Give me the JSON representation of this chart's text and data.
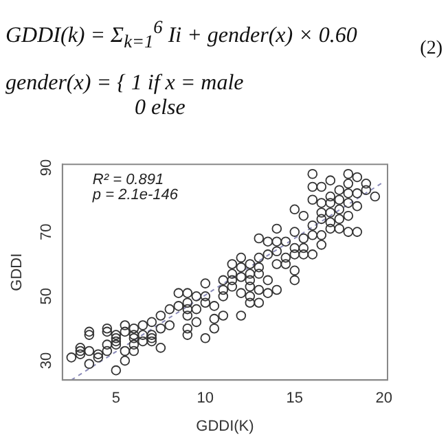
{
  "chart_data": {
    "type": "scatter",
    "xlabel": "GDDI(K)",
    "ylabel": "GDDI",
    "annotations": [
      "GDDI(k) = Σ$_{k=1}$$^{6}$ Ii + gender(x) × 0.60",
      "(2)",
      "gender(x) = { 1    if  x = male",
      "0    else",
      "R² = 0.891",
      "p = 2.1e-146"
    ],
    "xlim": [
      2,
      20.2
    ],
    "ylim": [
      24,
      91
    ],
    "xticks": [
      5,
      10,
      15,
      20
    ],
    "yticks": [
      30,
      50,
      70,
      90
    ],
    "grid": false,
    "legend": false,
    "marker": "circle",
    "series": [
      {
        "color": "#333333",
        "x": [
          2.5,
          3,
          3,
          3,
          3.5,
          3.5,
          3.5,
          3.5,
          4,
          4,
          4.5,
          4.5,
          4.5,
          4.5,
          5,
          5,
          5,
          5,
          5,
          5.5,
          5.5,
          5.5,
          5.5,
          6,
          6,
          6,
          6,
          6,
          6.5,
          6.5,
          6.5,
          7,
          7,
          7,
          7,
          7.5,
          7.5,
          7.5,
          8,
          8,
          8.5,
          8.5,
          9,
          9,
          9,
          9,
          9,
          9,
          9.5,
          9.5,
          9.5,
          10,
          10,
          10,
          10,
          10.5,
          10.5,
          10.5,
          11,
          11,
          11,
          11,
          11.5,
          11.5,
          11.5,
          11.5,
          12,
          12,
          12,
          12,
          12,
          12.5,
          12.5,
          12.5,
          12.5,
          12.5,
          12.5,
          13,
          13,
          13,
          13,
          13,
          13,
          13.5,
          13.5,
          13.5,
          13.5,
          14,
          14,
          14,
          14,
          14,
          14.5,
          14.5,
          14.5,
          15,
          15,
          15,
          15,
          15,
          15,
          15.5,
          15.5,
          15.5,
          15.5,
          16,
          16,
          16,
          16,
          16,
          16,
          16.5,
          16.5,
          16.5,
          16.5,
          16.5,
          16.5,
          17,
          17,
          17,
          17,
          17,
          17,
          17.5,
          17.5,
          17.5,
          17.5,
          17.5,
          18,
          18,
          18,
          18,
          18,
          18,
          18.5,
          18.5,
          18.5,
          18.5,
          19,
          19,
          19.5
        ],
        "values": [
          31,
          32,
          33,
          34,
          38,
          39,
          33,
          29,
          31,
          32,
          35,
          33,
          40,
          39,
          36,
          37,
          38,
          27,
          35,
          41,
          39,
          33,
          30,
          33,
          35,
          37,
          38,
          40,
          36,
          38,
          41,
          37,
          42,
          38,
          36,
          34,
          40,
          44,
          46,
          41,
          47,
          51,
          38,
          40,
          44,
          46,
          48,
          51,
          42,
          46,
          50,
          37,
          48,
          54,
          50,
          47,
          40,
          43,
          44,
          50,
          52,
          55,
          53,
          55,
          57,
          60,
          44,
          51,
          56,
          59,
          62,
          48,
          50,
          53,
          55,
          57,
          60,
          48,
          52,
          57,
          59,
          62,
          68,
          51,
          55,
          63,
          67,
          52,
          60,
          64,
          67,
          71,
          60,
          62,
          67,
          55,
          58,
          63,
          65,
          70,
          77,
          63,
          65,
          68,
          75,
          63,
          69,
          72,
          80,
          84,
          88,
          66,
          69,
          74,
          76,
          79,
          84,
          71,
          73,
          76,
          79,
          81,
          86,
          71,
          74,
          77,
          80,
          83,
          70,
          75,
          79,
          82,
          85,
          88,
          70,
          78,
          82,
          87,
          83,
          85,
          81
        ]
      },
      {
        "type": "line",
        "color": "#8a8ab8",
        "line_style": "dashed",
        "marker": "none",
        "x": [
          2.5,
          20
        ],
        "values": [
          24,
          85.6
        ]
      }
    ]
  }
}
